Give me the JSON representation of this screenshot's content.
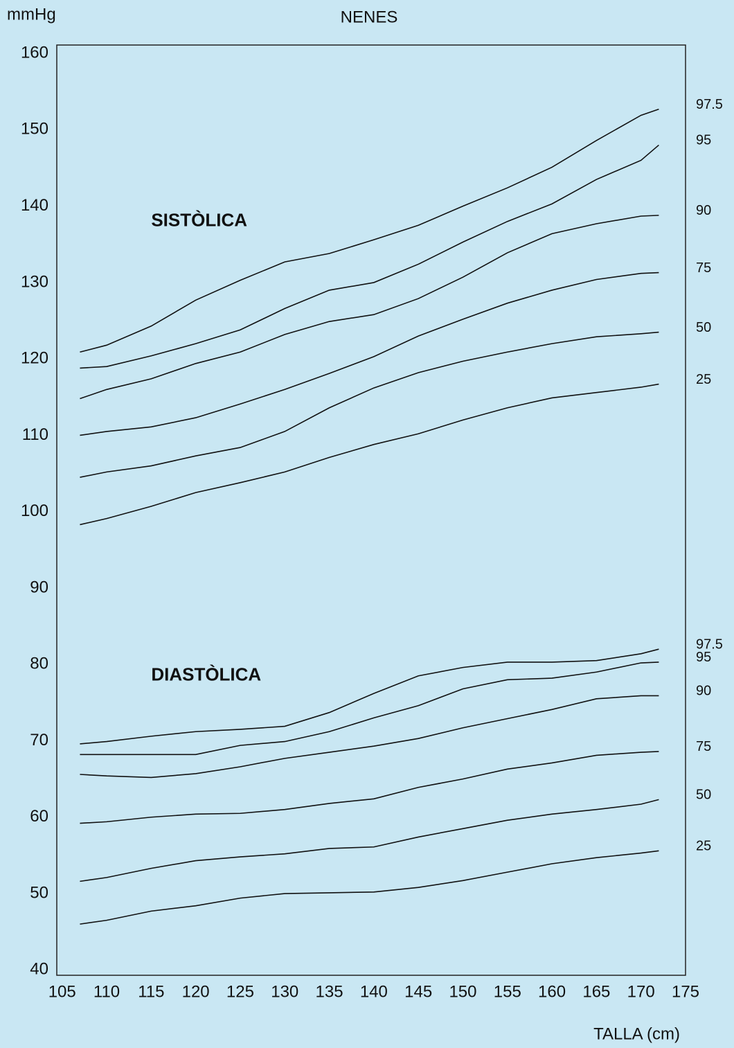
{
  "chart_data": {
    "type": "line",
    "title": "NENES",
    "y_label": "mmHg",
    "x_label": "TALLA (cm)",
    "annotations": [
      {
        "text": "SISTÒLICA",
        "x": 115,
        "y": 138
      },
      {
        "text": "DIASTÒLICA",
        "x": 115,
        "y": 78.5
      }
    ],
    "xlim": [
      104.4,
      175
    ],
    "xticks": [
      105,
      110,
      115,
      120,
      125,
      130,
      135,
      140,
      145,
      150,
      155,
      160,
      165,
      170,
      175
    ],
    "ylim": [
      39.3,
      161.1
    ],
    "yticks": [
      40,
      50,
      60,
      70,
      80,
      90,
      100,
      110,
      120,
      130,
      140,
      150,
      160
    ],
    "grid": false,
    "color": "#111111",
    "x": [
      107,
      110,
      115,
      120,
      125,
      130,
      135,
      140,
      145,
      150,
      155,
      160,
      165,
      170,
      172
    ],
    "series": [
      {
        "name": "97.5",
        "values": [
          120.9,
          121.8,
          124.3,
          127.7,
          130.3,
          132.7,
          133.8,
          135.6,
          137.5,
          140,
          142.4,
          145.1,
          148.6,
          151.9,
          152.7
        ]
      },
      {
        "name": "95",
        "values": [
          118.8,
          119,
          120.4,
          122,
          123.8,
          126.6,
          129,
          130,
          132.4,
          135.3,
          138,
          140.3,
          143.5,
          146,
          148
        ]
      },
      {
        "name": "90",
        "values": [
          114.8,
          116,
          117.4,
          119.4,
          120.9,
          123.2,
          124.9,
          125.8,
          127.9,
          130.7,
          133.9,
          136.4,
          137.7,
          138.7,
          138.8
        ]
      },
      {
        "name": "75",
        "values": [
          110,
          110.5,
          111.1,
          112.3,
          114.1,
          116,
          118.1,
          120.3,
          123,
          125.2,
          127.3,
          129,
          130.4,
          131.2,
          131.3
        ]
      },
      {
        "name": "50",
        "values": [
          104.5,
          105.2,
          106,
          107.3,
          108.4,
          110.5,
          113.6,
          116.2,
          118.2,
          119.7,
          120.9,
          122,
          122.9,
          123.3,
          123.5
        ]
      },
      {
        "name": "25",
        "values": [
          98.3,
          99.1,
          100.7,
          102.5,
          103.8,
          105.2,
          107.1,
          108.8,
          110.2,
          112,
          113.6,
          114.9,
          115.6,
          116.3,
          116.7
        ]
      },
      {
        "name": "97.5",
        "values": [
          69.6,
          69.9,
          70.6,
          71.2,
          71.5,
          71.9,
          73.7,
          76.2,
          78.5,
          79.6,
          80.3,
          80.3,
          80.5,
          81.4,
          82
        ]
      },
      {
        "name": "95",
        "values": [
          68.2,
          68.2,
          68.2,
          68.2,
          69.4,
          69.9,
          71.2,
          73,
          74.6,
          76.8,
          78,
          78.2,
          79,
          80.2,
          80.3
        ]
      },
      {
        "name": "90",
        "values": [
          65.6,
          65.4,
          65.2,
          65.7,
          66.6,
          67.7,
          68.5,
          69.3,
          70.3,
          71.7,
          72.9,
          74.1,
          75.5,
          75.9,
          75.9
        ]
      },
      {
        "name": "75",
        "values": [
          59.2,
          59.4,
          60,
          60.4,
          60.5,
          61,
          61.8,
          62.4,
          63.9,
          65,
          66.3,
          67.1,
          68.1,
          68.5,
          68.6
        ]
      },
      {
        "name": "50",
        "values": [
          51.6,
          52.1,
          53.3,
          54.3,
          54.8,
          55.2,
          55.9,
          56.1,
          57.4,
          58.5,
          59.6,
          60.4,
          61,
          61.7,
          62.3
        ]
      },
      {
        "name": "25",
        "values": [
          46,
          46.5,
          47.7,
          48.4,
          49.4,
          50,
          50.1,
          50.2,
          50.8,
          51.7,
          52.8,
          53.9,
          54.7,
          55.3,
          55.6
        ]
      }
    ]
  }
}
